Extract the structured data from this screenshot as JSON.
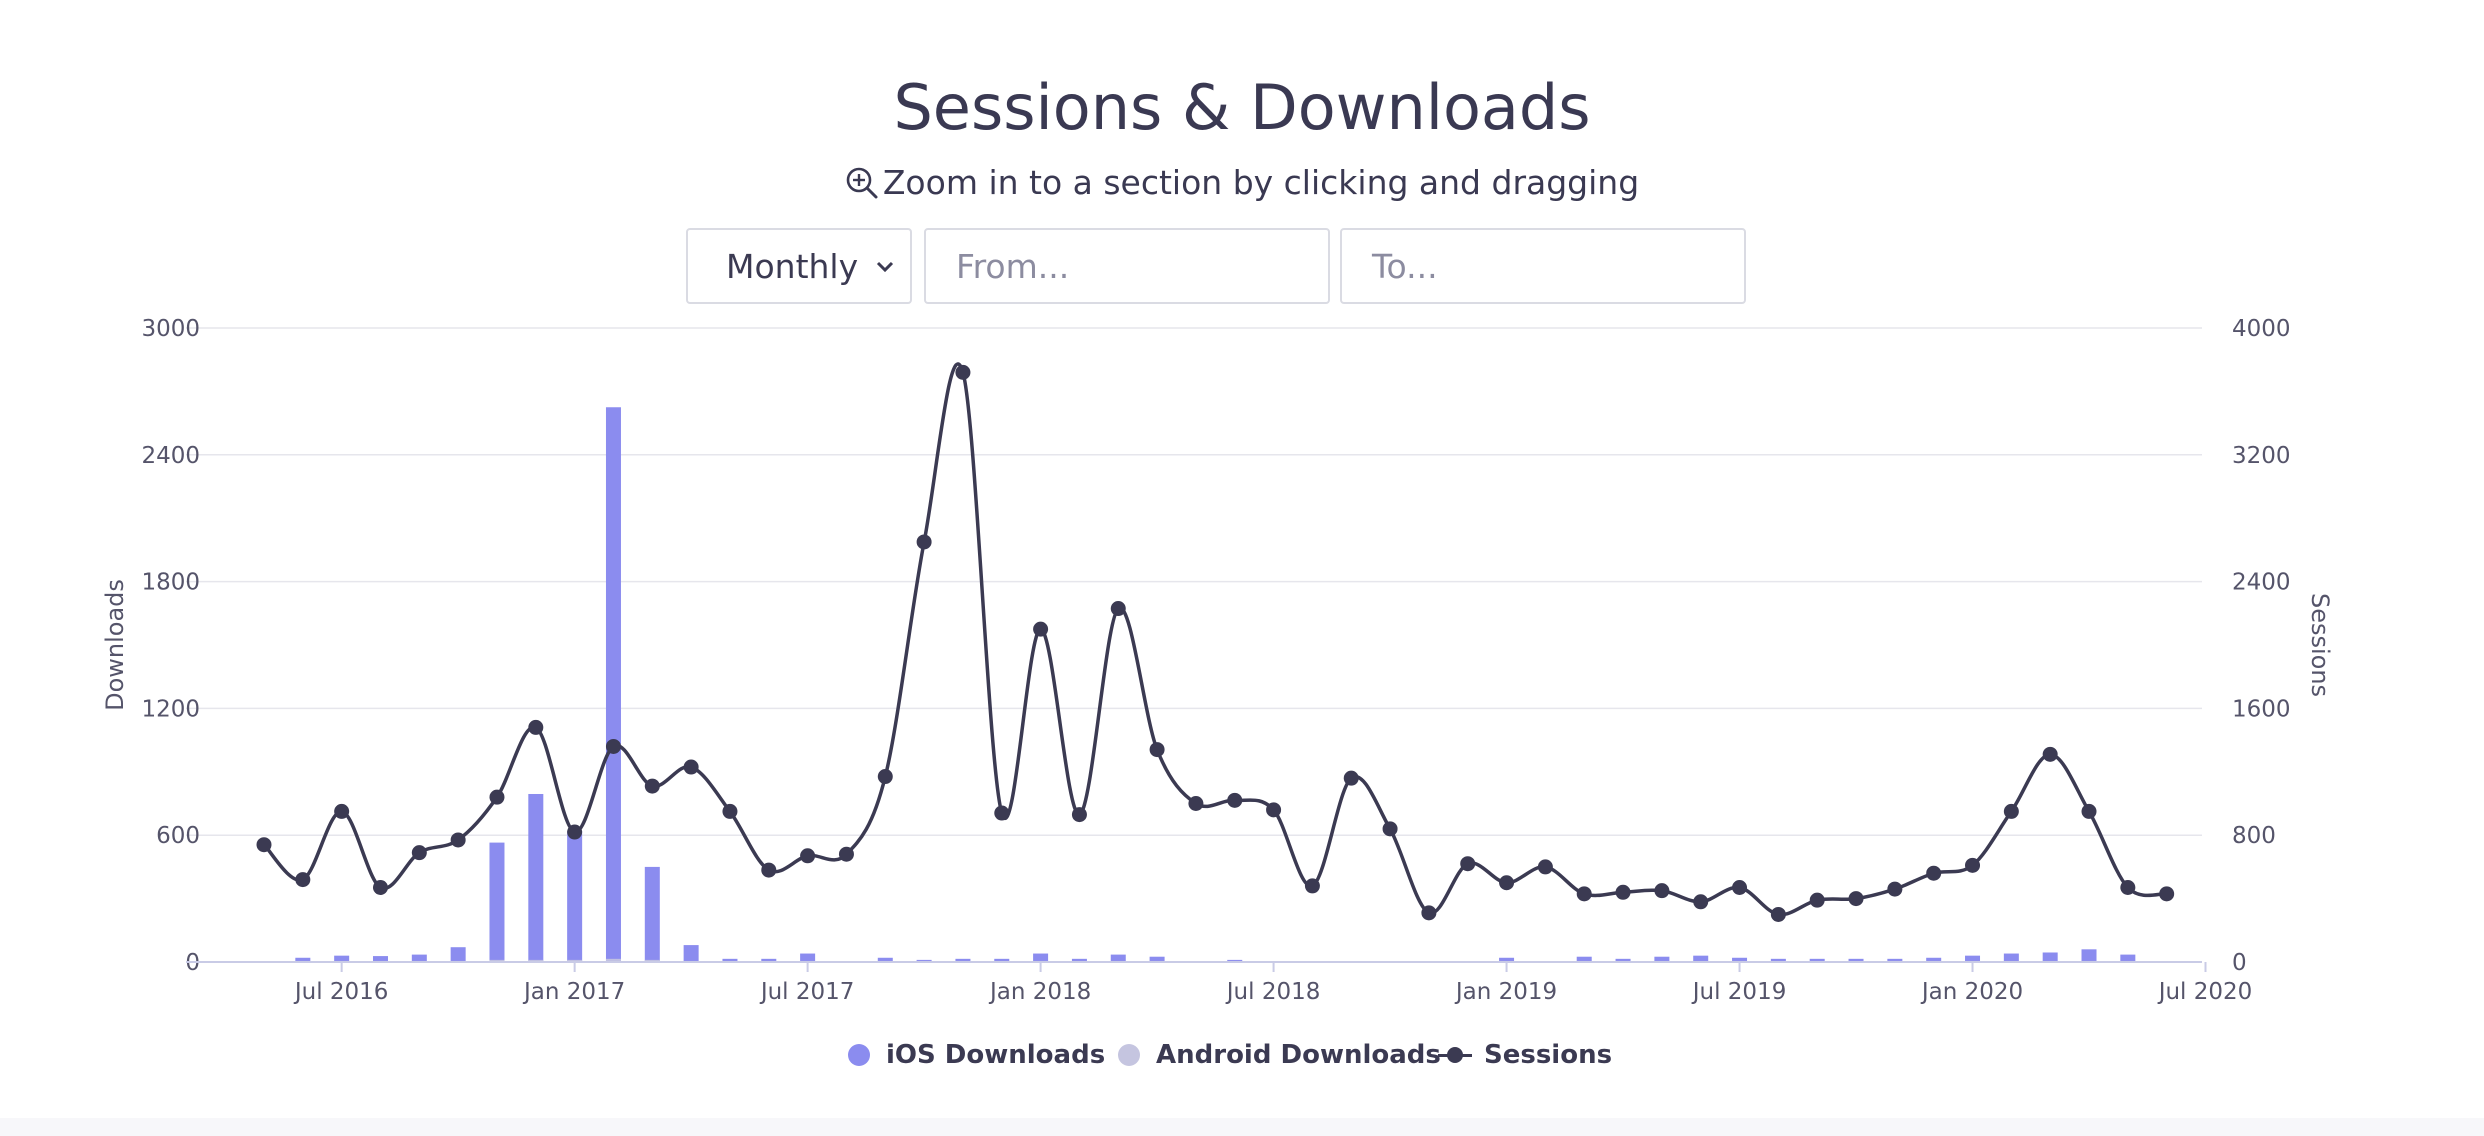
{
  "title": "Sessions & Downloads",
  "subtitle": "Zoom in to a section by clicking and dragging",
  "controls": {
    "interval_value": "Monthly",
    "from_placeholder": "From...",
    "to_placeholder": "To..."
  },
  "legend": {
    "ios": "iOS Downloads",
    "android": "Android Downloads",
    "sessions": "Sessions"
  },
  "colors": {
    "ios": "#8b8cef",
    "android": "#c5c5e0",
    "sessions": "#3b3a52",
    "grid": "#e6e6ec",
    "axis_text": "#55546a"
  },
  "chart_data": {
    "type": "bar",
    "title": "Sessions & Downloads",
    "x_months_start": "2016-05",
    "x_tick_labels": [
      "Jul 2016",
      "Jan 2017",
      "Jul 2017",
      "Jan 2018",
      "Jul 2018",
      "Jan 2019",
      "Jul 2019",
      "Jan 2020",
      "Jul 2020"
    ],
    "x_tick_month_index": [
      2,
      8,
      14,
      20,
      26,
      32,
      38,
      44,
      50
    ],
    "left_axis": {
      "label": "Downloads",
      "range": [
        0,
        3000
      ],
      "ticks": [
        0,
        600,
        1200,
        1800,
        2400,
        3000
      ]
    },
    "right_axis": {
      "label": "Sessions",
      "range": [
        0,
        4000
      ],
      "ticks": [
        0,
        800,
        1600,
        2400,
        3200,
        4000
      ]
    },
    "series": [
      {
        "name": "iOS Downloads",
        "type": "column",
        "axis": "left",
        "values": [
          0,
          20,
          30,
          28,
          35,
          70,
          565,
          795,
          620,
          2625,
          450,
          80,
          15,
          15,
          40,
          0,
          20,
          10,
          15,
          15,
          40,
          15,
          35,
          25,
          0,
          10,
          0,
          0,
          0,
          0,
          0,
          0,
          20,
          0,
          25,
          15,
          25,
          30,
          20,
          15,
          15,
          15,
          15,
          20,
          30,
          40,
          45,
          60,
          35,
          0,
          0
        ]
      },
      {
        "name": "Android Downloads",
        "type": "column",
        "axis": "left",
        "values": [
          0,
          5,
          5,
          5,
          5,
          5,
          10,
          10,
          10,
          15,
          10,
          5,
          5,
          5,
          5,
          0,
          5,
          5,
          5,
          5,
          5,
          5,
          5,
          5,
          0,
          5,
          0,
          0,
          0,
          0,
          0,
          0,
          5,
          0,
          5,
          5,
          5,
          5,
          5,
          5,
          5,
          5,
          5,
          5,
          5,
          5,
          5,
          5,
          5,
          0,
          0
        ]
      },
      {
        "name": "Sessions",
        "type": "spline",
        "axis": "right",
        "values": [
          740,
          520,
          950,
          470,
          690,
          770,
          1040,
          1480,
          820,
          1360,
          1110,
          1230,
          950,
          580,
          670,
          680,
          1170,
          2650,
          3720,
          940,
          2100,
          930,
          2230,
          1340,
          1000,
          1020,
          960,
          480,
          1160,
          840,
          310,
          620,
          500,
          600,
          430,
          440,
          450,
          380,
          470,
          300,
          390,
          400,
          460,
          560,
          610,
          950,
          1310,
          950,
          470,
          430,
          null
        ]
      }
    ]
  }
}
